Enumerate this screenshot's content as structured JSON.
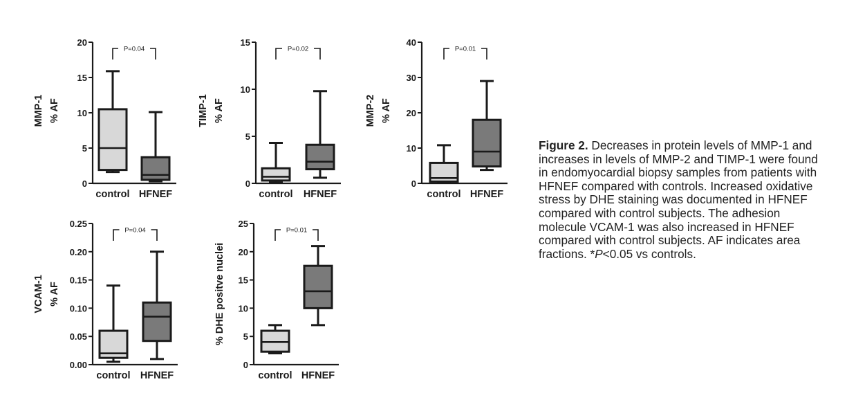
{
  "colors": {
    "control": "#d8d8d8",
    "hfnef": "#7a7a7a",
    "ink": "#1a1a1a"
  },
  "chart_data": [
    {
      "type": "box",
      "ylabel_line1": "MMP-1",
      "ylabel_line2": "% AF",
      "ylim": [
        0,
        20
      ],
      "yticks": [
        0,
        5,
        10,
        15,
        20
      ],
      "ytick_labels": [
        "0",
        "5",
        "10",
        "15",
        "20"
      ],
      "categories": [
        "control",
        "HFNEF"
      ],
      "boxes": [
        {
          "name": "control",
          "min": 1.6,
          "q1": 1.9,
          "median": 5.0,
          "q3": 10.5,
          "max": 15.9
        },
        {
          "name": "HFNEF",
          "min": 0.3,
          "q1": 0.5,
          "median": 1.2,
          "q3": 3.7,
          "max": 10.1
        }
      ],
      "annotation": "P=0.04"
    },
    {
      "type": "box",
      "ylabel_line1": "TIMP-1",
      "ylabel_line2": "% AF",
      "ylim": [
        0,
        15
      ],
      "yticks": [
        0,
        5,
        10,
        15
      ],
      "ytick_labels": [
        "0",
        "5",
        "10",
        "15"
      ],
      "categories": [
        "control",
        "HFNEF"
      ],
      "boxes": [
        {
          "name": "control",
          "min": 0.1,
          "q1": 0.3,
          "median": 0.7,
          "q3": 1.6,
          "max": 4.3
        },
        {
          "name": "HFNEF",
          "min": 0.6,
          "q1": 1.5,
          "median": 2.3,
          "q3": 4.1,
          "max": 9.8
        }
      ],
      "annotation": "P=0.02"
    },
    {
      "type": "box",
      "ylabel_line1": "MMP-2",
      "ylabel_line2": "% AF",
      "ylim": [
        0,
        40
      ],
      "yticks": [
        0,
        10,
        20,
        30,
        40
      ],
      "ytick_labels": [
        "0",
        "10",
        "20",
        "30",
        "40"
      ],
      "categories": [
        "control",
        "HFNEF"
      ],
      "boxes": [
        {
          "name": "control",
          "min": 0.3,
          "q1": 0.5,
          "median": 1.5,
          "q3": 5.8,
          "max": 10.8
        },
        {
          "name": "HFNEF",
          "min": 3.8,
          "q1": 4.8,
          "median": 9.0,
          "q3": 18.0,
          "max": 29.0
        }
      ],
      "annotation": "P=0.01"
    },
    {
      "type": "box",
      "ylabel_line1": "VCAM-1",
      "ylabel_line2": "% AF",
      "ylim": [
        0,
        0.25
      ],
      "yticks": [
        0,
        0.05,
        0.1,
        0.15,
        0.2,
        0.25
      ],
      "ytick_labels": [
        "0.00",
        "0.05",
        "0.10",
        "0.15",
        "0.20",
        "0.25"
      ],
      "categories": [
        "control",
        "HFNEF"
      ],
      "boxes": [
        {
          "name": "control",
          "min": 0.005,
          "q1": 0.012,
          "median": 0.02,
          "q3": 0.06,
          "max": 0.14
        },
        {
          "name": "HFNEF",
          "min": 0.01,
          "q1": 0.042,
          "median": 0.085,
          "q3": 0.11,
          "max": 0.2
        }
      ],
      "annotation": "P=0.04"
    },
    {
      "type": "box",
      "ylabel_line1": "",
      "ylabel_line2": "% DHE positve nuclei",
      "ylim": [
        0,
        25
      ],
      "yticks": [
        0,
        5,
        10,
        15,
        20,
        25
      ],
      "ytick_labels": [
        "0",
        "5",
        "10",
        "15",
        "20",
        "25"
      ],
      "categories": [
        "control",
        "HFNEF"
      ],
      "boxes": [
        {
          "name": "control",
          "min": 2.0,
          "q1": 2.3,
          "median": 4.0,
          "q3": 6.0,
          "max": 7.0
        },
        {
          "name": "HFNEF",
          "min": 7.0,
          "q1": 10.0,
          "median": 13.0,
          "q3": 17.5,
          "max": 21.0
        }
      ],
      "annotation": "P=0.01"
    }
  ],
  "caption": {
    "label": "Figure 2.",
    "text_before_italic": " Decreases in protein levels of MMP-1 and increases in levels of MMP-2 and TIMP-1 were found in endomyocardial biopsy samples from patients with HFNEF compared with controls. Increased oxidative stress by DHE staining was documented in HFNEF compared with control subjects. The adhesion molecule VCAM-1 was also increased in HFNEF compared with control subjects. AF indicates area fractions. *",
    "italic": "P",
    "text_after_italic": "<0.05 vs controls."
  }
}
